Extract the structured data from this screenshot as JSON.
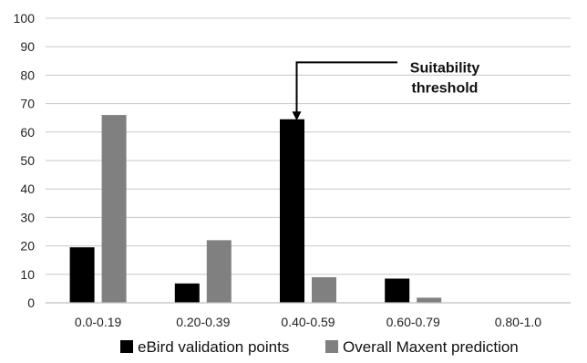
{
  "chart_data": {
    "type": "bar",
    "categories": [
      "0.0-0.19",
      "0.20-0.39",
      "0.40-0.59",
      "0.60-0.79",
      "0.80-1.0"
    ],
    "series": [
      {
        "name": "eBird validation points",
        "color": "#000000",
        "values": [
          19.5,
          6.8,
          64.5,
          8.5,
          0
        ]
      },
      {
        "name": "Overall Maxent prediction",
        "color": "#808080",
        "values": [
          66,
          22,
          9,
          1.8,
          0
        ]
      }
    ],
    "yticks": [
      0,
      10,
      20,
      30,
      40,
      50,
      60,
      70,
      80,
      90,
      100
    ],
    "ylim": [
      0,
      100
    ],
    "grid": true,
    "legend_position": "bottom",
    "annotation": {
      "lines": [
        "Suitability",
        "threshold"
      ],
      "points_to_category": "0.40-0.59",
      "points_to_value": 73
    }
  }
}
